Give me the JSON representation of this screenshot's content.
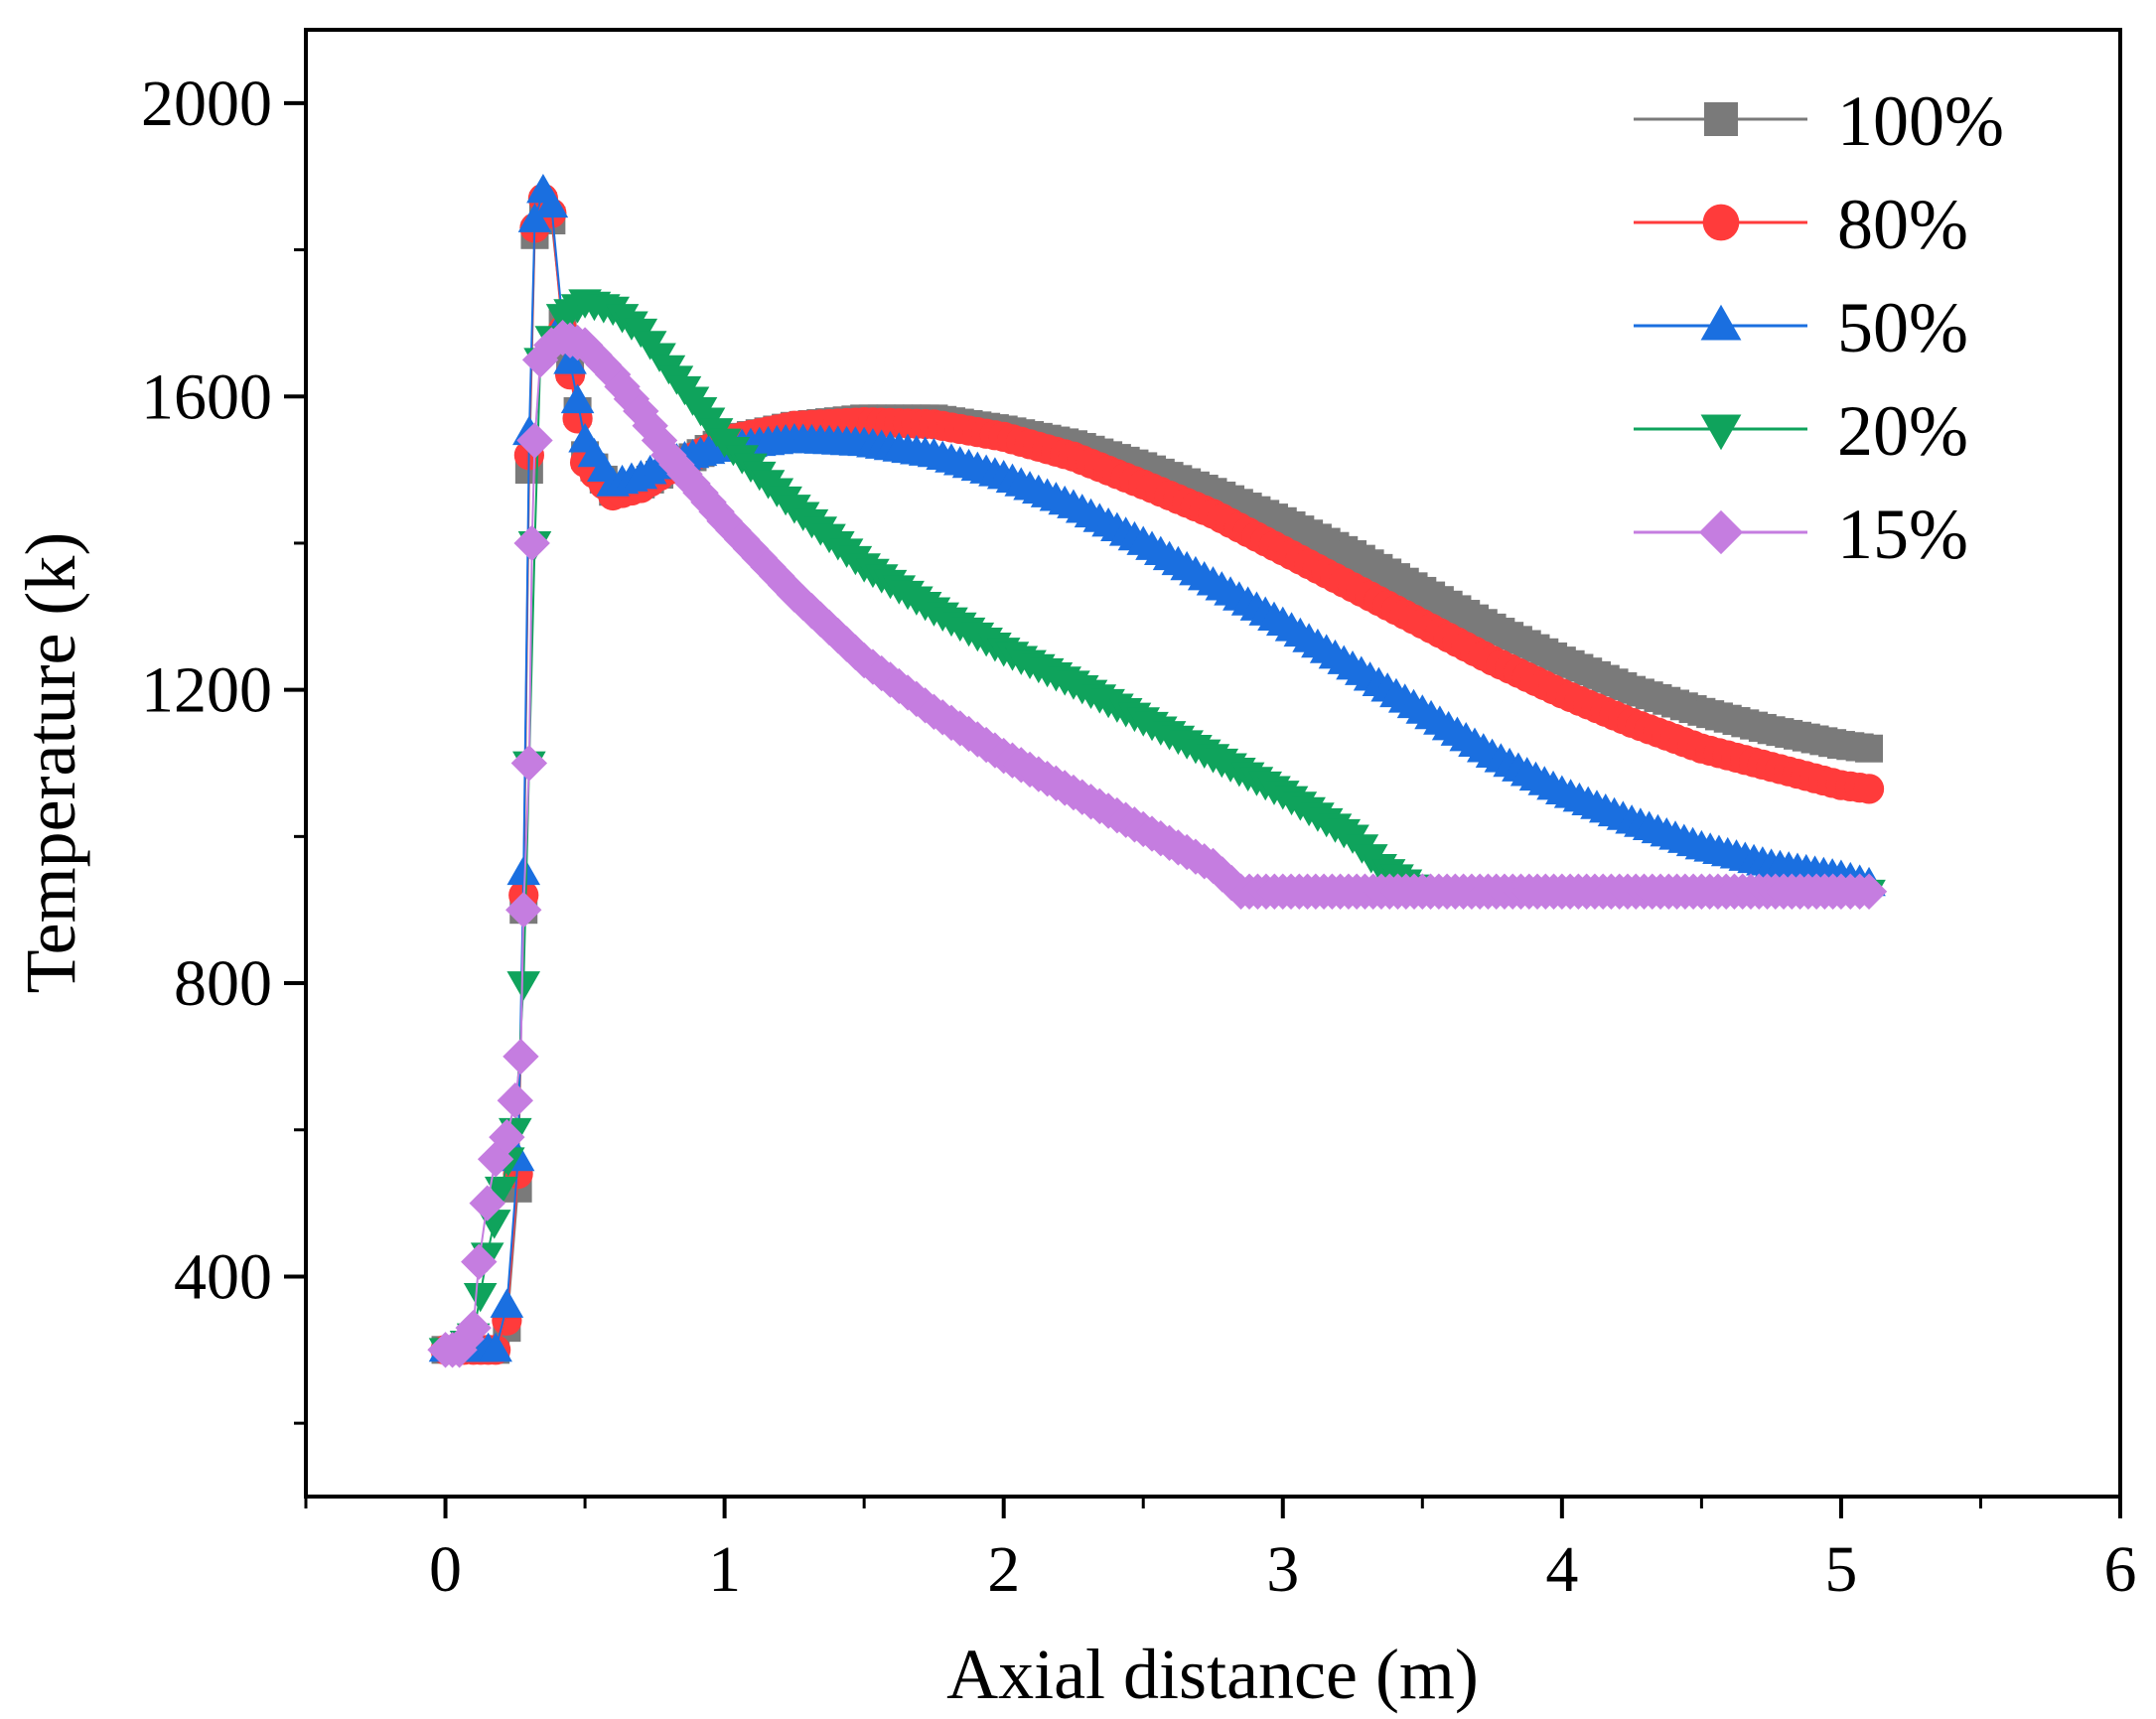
{
  "chart_data": {
    "type": "line",
    "xlabel": "Axial distance (m)",
    "ylabel": "Temperature (k)",
    "xlim": [
      -0.5,
      6
    ],
    "ylim": [
      100,
      2100
    ],
    "xticks": [
      0,
      1,
      2,
      3,
      4,
      5,
      6
    ],
    "yticks": [
      400,
      800,
      1200,
      1600,
      2000
    ],
    "legend_position": "top-right",
    "grid": false,
    "series": [
      {
        "name": "100%",
        "color": "#7a7a7a",
        "marker": "square",
        "points": [
          [
            0,
            300
          ],
          [
            0.1,
            300
          ],
          [
            0.18,
            300
          ],
          [
            0.22,
            330
          ],
          [
            0.26,
            520
          ],
          [
            0.28,
            900
          ],
          [
            0.3,
            1500
          ],
          [
            0.32,
            1820
          ],
          [
            0.35,
            1860
          ],
          [
            0.38,
            1840
          ],
          [
            0.42,
            1700
          ],
          [
            0.5,
            1520
          ],
          [
            0.6,
            1470
          ],
          [
            0.7,
            1480
          ],
          [
            0.8,
            1500
          ],
          [
            1.0,
            1540
          ],
          [
            1.25,
            1560
          ],
          [
            1.5,
            1570
          ],
          [
            1.75,
            1570
          ],
          [
            2.0,
            1555
          ],
          [
            2.25,
            1535
          ],
          [
            2.5,
            1505
          ],
          [
            2.75,
            1470
          ],
          [
            3.0,
            1430
          ],
          [
            3.25,
            1385
          ],
          [
            3.5,
            1335
          ],
          [
            3.75,
            1285
          ],
          [
            4.0,
            1240
          ],
          [
            4.25,
            1200
          ],
          [
            4.5,
            1170
          ],
          [
            4.75,
            1145
          ],
          [
            5.0,
            1125
          ],
          [
            5.1,
            1120
          ]
        ]
      },
      {
        "name": "80%",
        "color": "#ff3b3b",
        "marker": "circle",
        "points": [
          [
            0,
            300
          ],
          [
            0.1,
            300
          ],
          [
            0.18,
            300
          ],
          [
            0.22,
            340
          ],
          [
            0.26,
            540
          ],
          [
            0.28,
            920
          ],
          [
            0.3,
            1520
          ],
          [
            0.32,
            1830
          ],
          [
            0.35,
            1870
          ],
          [
            0.38,
            1850
          ],
          [
            0.42,
            1690
          ],
          [
            0.5,
            1510
          ],
          [
            0.6,
            1465
          ],
          [
            0.7,
            1475
          ],
          [
            0.8,
            1500
          ],
          [
            1.0,
            1540
          ],
          [
            1.25,
            1560
          ],
          [
            1.5,
            1565
          ],
          [
            1.75,
            1562
          ],
          [
            2.0,
            1545
          ],
          [
            2.25,
            1518
          ],
          [
            2.5,
            1480
          ],
          [
            2.75,
            1440
          ],
          [
            3.0,
            1390
          ],
          [
            3.25,
            1340
          ],
          [
            3.5,
            1290
          ],
          [
            3.75,
            1240
          ],
          [
            4.0,
            1195
          ],
          [
            4.25,
            1155
          ],
          [
            4.5,
            1120
          ],
          [
            4.75,
            1095
          ],
          [
            5.0,
            1070
          ],
          [
            5.1,
            1065
          ]
        ]
      },
      {
        "name": "50%",
        "color": "#1a6fe0",
        "marker": "triangle-up",
        "points": [
          [
            0,
            300
          ],
          [
            0.1,
            300
          ],
          [
            0.18,
            300
          ],
          [
            0.22,
            360
          ],
          [
            0.26,
            560
          ],
          [
            0.28,
            950
          ],
          [
            0.3,
            1550
          ],
          [
            0.32,
            1840
          ],
          [
            0.35,
            1880
          ],
          [
            0.38,
            1860
          ],
          [
            0.42,
            1700
          ],
          [
            0.5,
            1540
          ],
          [
            0.6,
            1480
          ],
          [
            0.7,
            1490
          ],
          [
            0.8,
            1510
          ],
          [
            1.0,
            1530
          ],
          [
            1.25,
            1540
          ],
          [
            1.5,
            1535
          ],
          [
            1.75,
            1520
          ],
          [
            2.0,
            1490
          ],
          [
            2.25,
            1450
          ],
          [
            2.5,
            1400
          ],
          [
            2.75,
            1345
          ],
          [
            3.0,
            1290
          ],
          [
            3.25,
            1230
          ],
          [
            3.5,
            1170
          ],
          [
            3.75,
            1110
          ],
          [
            4.0,
            1060
          ],
          [
            4.25,
            1020
          ],
          [
            4.5,
            985
          ],
          [
            4.75,
            960
          ],
          [
            5.0,
            945
          ],
          [
            5.1,
            935
          ]
        ]
      },
      {
        "name": "20%",
        "color": "#0fa35c",
        "marker": "triangle-down",
        "points": [
          [
            0,
            300
          ],
          [
            0.05,
            300
          ],
          [
            0.1,
            320
          ],
          [
            0.15,
            430
          ],
          [
            0.2,
            520
          ],
          [
            0.25,
            600
          ],
          [
            0.28,
            800
          ],
          [
            0.3,
            1100
          ],
          [
            0.32,
            1400
          ],
          [
            0.34,
            1650
          ],
          [
            0.38,
            1680
          ],
          [
            0.42,
            1710
          ],
          [
            0.5,
            1730
          ],
          [
            0.6,
            1720
          ],
          [
            0.7,
            1690
          ],
          [
            0.8,
            1640
          ],
          [
            1.0,
            1540
          ],
          [
            1.25,
            1450
          ],
          [
            1.5,
            1370
          ],
          [
            1.75,
            1310
          ],
          [
            2.0,
            1255
          ],
          [
            2.25,
            1210
          ],
          [
            2.5,
            1160
          ],
          [
            2.75,
            1110
          ],
          [
            3.0,
            1060
          ],
          [
            3.25,
            1000
          ],
          [
            3.35,
            960
          ],
          [
            3.5,
            925
          ],
          [
            4.0,
            925
          ],
          [
            4.5,
            925
          ],
          [
            5.0,
            925
          ],
          [
            5.1,
            925
          ]
        ]
      },
      {
        "name": "15%",
        "color": "#c57de0",
        "marker": "diamond",
        "points": [
          [
            0,
            300
          ],
          [
            0.05,
            300
          ],
          [
            0.1,
            330
          ],
          [
            0.12,
            420
          ],
          [
            0.15,
            500
          ],
          [
            0.18,
            560
          ],
          [
            0.22,
            590
          ],
          [
            0.25,
            640
          ],
          [
            0.27,
            700
          ],
          [
            0.28,
            900
          ],
          [
            0.3,
            1100
          ],
          [
            0.31,
            1400
          ],
          [
            0.32,
            1540
          ],
          [
            0.34,
            1650
          ],
          [
            0.38,
            1670
          ],
          [
            0.42,
            1680
          ],
          [
            0.5,
            1670
          ],
          [
            0.6,
            1630
          ],
          [
            0.7,
            1580
          ],
          [
            0.8,
            1520
          ],
          [
            1.0,
            1430
          ],
          [
            1.25,
            1330
          ],
          [
            1.5,
            1240
          ],
          [
            1.75,
            1170
          ],
          [
            2.0,
            1110
          ],
          [
            2.25,
            1060
          ],
          [
            2.5,
            1010
          ],
          [
            2.75,
            960
          ],
          [
            2.85,
            925
          ],
          [
            3.0,
            925
          ],
          [
            3.5,
            925
          ],
          [
            4.0,
            925
          ],
          [
            4.5,
            925
          ],
          [
            5.0,
            925
          ],
          [
            5.1,
            925
          ]
        ]
      }
    ]
  }
}
